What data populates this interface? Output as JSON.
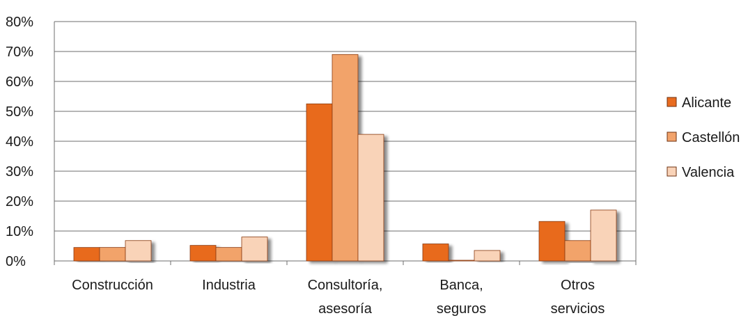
{
  "chart_data": {
    "type": "bar",
    "categories": [
      [
        "Construcción"
      ],
      [
        "Industria"
      ],
      [
        "Consultoría,",
        "asesoría"
      ],
      [
        "Banca,",
        "seguros"
      ],
      [
        "Otros",
        "servicios"
      ]
    ],
    "series": [
      {
        "name": "Alicante",
        "color": "#E86B1F",
        "values": [
          4.5,
          5.2,
          52.5,
          5.7,
          13.2
        ]
      },
      {
        "name": "Castellón",
        "color": "#F2A36B",
        "values": [
          4.5,
          4.5,
          69,
          0,
          6.8
        ]
      },
      {
        "name": "Valencia",
        "color": "#F9D3B8",
        "values": [
          6.8,
          8,
          42.3,
          3.5,
          17
        ]
      }
    ],
    "y_axis": {
      "min": 0,
      "max": 80,
      "step": 10,
      "tick_labels": [
        "0%",
        "10%",
        "20%",
        "30%",
        "40%",
        "50%",
        "60%",
        "70%",
        "80%"
      ]
    },
    "grid": true,
    "legend_position": "right"
  }
}
